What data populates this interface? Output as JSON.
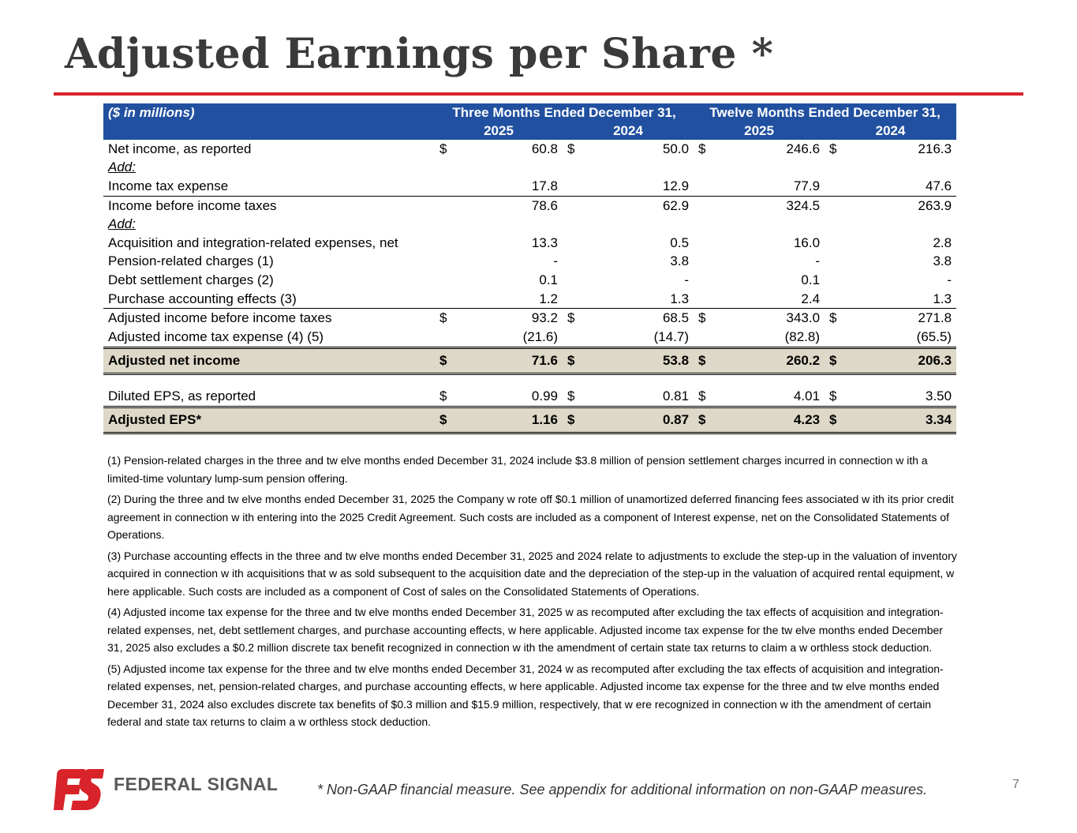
{
  "title": "Adjusted Earnings per Share *",
  "table": {
    "units_label": "($ in millions)",
    "three_months_header": "Three Months Ended December 31,",
    "twelve_months_header": "Twelve Months Ended December 31,",
    "years": [
      "2025",
      "2024",
      "2025",
      "2024"
    ],
    "rows": [
      {
        "label": "Net income, as reported",
        "cells": [
          "$",
          "60.8",
          "$",
          "50.0",
          "$",
          "246.6",
          "$",
          "216.3"
        ]
      },
      {
        "label": "Add:",
        "cells": [
          "",
          "",
          "",
          "",
          "",
          "",
          "",
          ""
        ]
      },
      {
        "label": "Income tax expense",
        "cells": [
          "",
          "17.8",
          "",
          "12.9",
          "",
          "77.9",
          "",
          "47.6"
        ]
      },
      {
        "label": "Income before income taxes",
        "cells": [
          "",
          "78.6",
          "",
          "62.9",
          "",
          "324.5",
          "",
          "263.9"
        ]
      },
      {
        "label": "Add:",
        "cells": [
          "",
          "",
          "",
          "",
          "",
          "",
          "",
          ""
        ]
      },
      {
        "label": "Acquisition and integration-related expenses, net",
        "cells": [
          "",
          "13.3",
          "",
          "0.5",
          "",
          "16.0",
          "",
          "2.8"
        ]
      },
      {
        "label": "Pension-related charges (1)",
        "cells": [
          "",
          "-",
          "",
          "3.8",
          "",
          "-",
          "",
          "3.8"
        ]
      },
      {
        "label": "Debt settlement charges (2)",
        "cells": [
          "",
          "0.1",
          "",
          "-",
          "",
          "0.1",
          "",
          "-"
        ]
      },
      {
        "label": "Purchase accounting effects (3)",
        "cells": [
          "",
          "1.2",
          "",
          "1.3",
          "",
          "2.4",
          "",
          "1.3"
        ]
      },
      {
        "label": "Adjusted income before income taxes",
        "cells": [
          "$",
          "93.2",
          "$",
          "68.5",
          "$",
          "343.0",
          "$",
          "271.8"
        ]
      },
      {
        "label": "Adjusted income tax expense (4) (5)",
        "cells": [
          "",
          "(21.6)",
          "",
          "(14.7)",
          "",
          "(82.8)",
          "",
          "(65.5)"
        ]
      },
      {
        "label": "Adjusted net income",
        "cells": [
          "$",
          "71.6",
          "$",
          "53.8",
          "$",
          "260.2",
          "$",
          "206.3"
        ]
      },
      {
        "label": "Diluted EPS, as reported",
        "cells": [
          "$",
          "0.99",
          "$",
          "0.81",
          "$",
          "4.01",
          "$",
          "3.50"
        ]
      },
      {
        "label": "Adjusted EPS*",
        "cells": [
          "$",
          "1.16",
          "$",
          "0.87",
          "$",
          "4.23",
          "$",
          "3.34"
        ]
      }
    ]
  },
  "notes": [
    "(1) Pension-related charges in the three and tw elve months ended December 31, 2024 include $3.8 million of pension settlement charges incurred in connection w ith a limited-time voluntary lump-sum pension offering.",
    "(2) During the three and tw elve months ended December 31, 2025 the Company w rote off $0.1 million of unamortized deferred financing fees associated w ith its prior credit agreement in connection w ith entering into the 2025 Credit Agreement. Such costs are included as a component of Interest expense, net on the Consolidated Statements of Operations.",
    "(3) Purchase accounting effects in the three and tw elve months ended December 31, 2025 and 2024 relate to adjustments to exclude the step-up in the valuation of inventory acquired in connection w ith acquisitions that w as sold subsequent to the acquisition date and the depreciation of the step-up in the valuation of acquired rental equipment, w here applicable. Such costs are included as a component of Cost of sales on the Consolidated Statements of Operations.",
    "(4) Adjusted income tax expense for the three and tw elve months ended December 31, 2025 w as recomputed after excluding the tax effects of acquisition and integration-related expenses, net, debt settlement charges, and purchase accounting effects, w here applicable. Adjusted income tax expense for the tw elve months ended December 31, 2025  also excludes a $0.2 million discrete tax benefit recognized in connection w ith the amendment of certain state tax returns to claim a w orthless stock deduction.",
    "(5) Adjusted income tax expense for the three and tw elve months ended December 31, 2024 w as recomputed after excluding the tax effects of acquisition and integration-related expenses, net, pension-related charges, and purchase accounting effects, w here applicable. Adjusted income tax expense for the three and tw elve months ended December 31, 2024 also excludes discrete tax benefits of $0.3 million and $15.9 million, respectively, that w ere recognized in connection w ith the amendment of certain federal and state tax returns to claim a w orthless stock deduction."
  ],
  "logo_text": "FEDERAL SIGNAL",
  "footnote": "* Non-GAAP financial measure. See appendix for additional information on non-GAAP measures.",
  "page_number": "7",
  "colors": {
    "accent_red": "#d8232a",
    "header_blue": "#2150a0",
    "highlight_beige": "#ddd8c7"
  }
}
